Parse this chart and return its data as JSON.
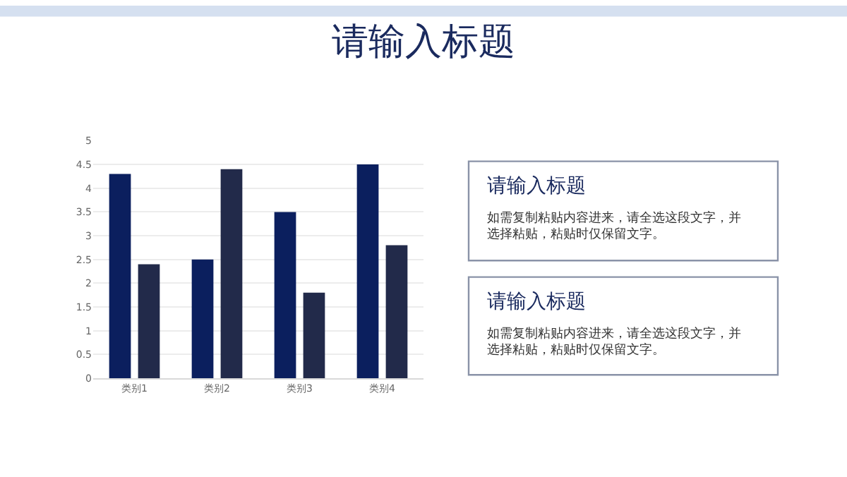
{
  "chart_data": {
    "type": "bar",
    "title": "请输入标题",
    "categories": [
      "类别1",
      "类别2",
      "类别3",
      "类别4"
    ],
    "series": [
      {
        "color": "#0b1f5e",
        "values": [
          4.3,
          2.5,
          3.5,
          4.5
        ]
      },
      {
        "color": "#222a4a",
        "values": [
          2.4,
          4.4,
          1.8,
          2.8
        ]
      }
    ],
    "ylim": [
      0,
      5
    ],
    "yticks": [
      0,
      0.5,
      1,
      1.5,
      2,
      2.5,
      3,
      3.5,
      4,
      4.5,
      5
    ],
    "grid": "y",
    "annotations": [
      "请输入标题",
      "如需复制粘贴内容进来，请全选这段文字，并选择粘贴，粘贴时仅保留文字。",
      "请输入标题",
      "如需复制粘贴内容进来，请全选这段文字，并选择粘贴，粘贴时仅保留文字。"
    ]
  }
}
